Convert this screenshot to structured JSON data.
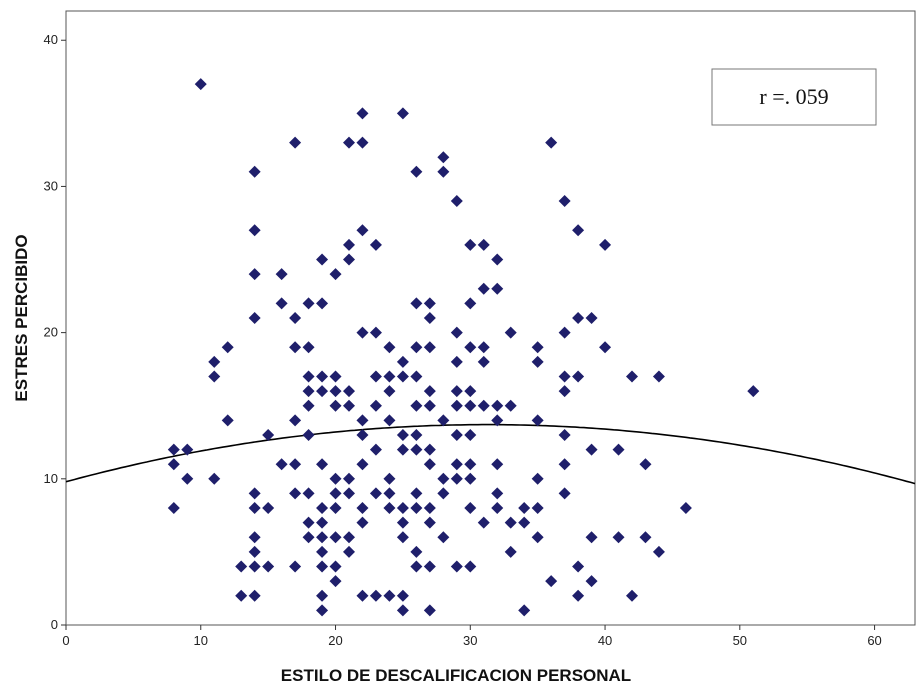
{
  "chart_data": {
    "type": "scatter",
    "xlabel": "ESTILO DE DESCALIFICACION PERSONAL",
    "ylabel": "ESTRES PERCIBIDO",
    "xlim": [
      0,
      63
    ],
    "ylim": [
      0,
      42
    ],
    "x_ticks": [
      0,
      10,
      20,
      30,
      40,
      50,
      60
    ],
    "y_ticks": [
      0,
      10,
      20,
      30,
      40
    ],
    "grid": false,
    "annotation": "r =. 059",
    "annotation_position": "top-right",
    "marker": "diamond",
    "marker_color": "#1f1f6b",
    "fit_line": {
      "type": "quadratic",
      "coefficients": [
        9.8,
        0.25,
        -0.004
      ],
      "color": "#000000"
    },
    "points": [
      [
        10,
        37
      ],
      [
        22,
        35
      ],
      [
        25,
        35
      ],
      [
        17,
        33
      ],
      [
        21,
        33
      ],
      [
        22,
        33
      ],
      [
        36,
        33
      ],
      [
        28,
        32
      ],
      [
        14,
        31
      ],
      [
        26,
        31
      ],
      [
        28,
        31
      ],
      [
        29,
        29
      ],
      [
        37,
        29
      ],
      [
        14,
        27
      ],
      [
        22,
        27
      ],
      [
        38,
        27
      ],
      [
        21,
        26
      ],
      [
        23,
        26
      ],
      [
        30,
        26
      ],
      [
        31,
        26
      ],
      [
        40,
        26
      ],
      [
        19,
        25
      ],
      [
        21,
        25
      ],
      [
        32,
        25
      ],
      [
        14,
        24
      ],
      [
        16,
        24
      ],
      [
        20,
        24
      ],
      [
        31,
        23
      ],
      [
        32,
        23
      ],
      [
        16,
        22
      ],
      [
        18,
        22
      ],
      [
        19,
        22
      ],
      [
        26,
        22
      ],
      [
        27,
        22
      ],
      [
        30,
        22
      ],
      [
        14,
        21
      ],
      [
        17,
        21
      ],
      [
        27,
        21
      ],
      [
        38,
        21
      ],
      [
        39,
        21
      ],
      [
        22,
        20
      ],
      [
        23,
        20
      ],
      [
        29,
        20
      ],
      [
        33,
        20
      ],
      [
        37,
        20
      ],
      [
        12,
        19
      ],
      [
        17,
        19
      ],
      [
        18,
        19
      ],
      [
        24,
        19
      ],
      [
        26,
        19
      ],
      [
        27,
        19
      ],
      [
        30,
        19
      ],
      [
        31,
        19
      ],
      [
        35,
        19
      ],
      [
        40,
        19
      ],
      [
        11,
        18
      ],
      [
        25,
        18
      ],
      [
        29,
        18
      ],
      [
        31,
        18
      ],
      [
        35,
        18
      ],
      [
        11,
        17
      ],
      [
        18,
        17
      ],
      [
        19,
        17
      ],
      [
        20,
        17
      ],
      [
        23,
        17
      ],
      [
        24,
        17
      ],
      [
        25,
        17
      ],
      [
        26,
        17
      ],
      [
        37,
        17
      ],
      [
        38,
        17
      ],
      [
        42,
        17
      ],
      [
        44,
        17
      ],
      [
        18,
        16
      ],
      [
        19,
        16
      ],
      [
        20,
        16
      ],
      [
        21,
        16
      ],
      [
        24,
        16
      ],
      [
        27,
        16
      ],
      [
        29,
        16
      ],
      [
        30,
        16
      ],
      [
        37,
        16
      ],
      [
        51,
        16
      ],
      [
        18,
        15
      ],
      [
        20,
        15
      ],
      [
        21,
        15
      ],
      [
        23,
        15
      ],
      [
        26,
        15
      ],
      [
        27,
        15
      ],
      [
        29,
        15
      ],
      [
        30,
        15
      ],
      [
        31,
        15
      ],
      [
        32,
        15
      ],
      [
        33,
        15
      ],
      [
        12,
        14
      ],
      [
        17,
        14
      ],
      [
        22,
        14
      ],
      [
        24,
        14
      ],
      [
        28,
        14
      ],
      [
        32,
        14
      ],
      [
        35,
        14
      ],
      [
        15,
        13
      ],
      [
        18,
        13
      ],
      [
        22,
        13
      ],
      [
        25,
        13
      ],
      [
        26,
        13
      ],
      [
        29,
        13
      ],
      [
        30,
        13
      ],
      [
        37,
        13
      ],
      [
        8,
        12
      ],
      [
        9,
        12
      ],
      [
        23,
        12
      ],
      [
        25,
        12
      ],
      [
        26,
        12
      ],
      [
        27,
        12
      ],
      [
        39,
        12
      ],
      [
        41,
        12
      ],
      [
        8,
        11
      ],
      [
        16,
        11
      ],
      [
        17,
        11
      ],
      [
        19,
        11
      ],
      [
        22,
        11
      ],
      [
        27,
        11
      ],
      [
        29,
        11
      ],
      [
        30,
        11
      ],
      [
        32,
        11
      ],
      [
        37,
        11
      ],
      [
        43,
        11
      ],
      [
        9,
        10
      ],
      [
        11,
        10
      ],
      [
        20,
        10
      ],
      [
        21,
        10
      ],
      [
        24,
        10
      ],
      [
        28,
        10
      ],
      [
        29,
        10
      ],
      [
        30,
        10
      ],
      [
        35,
        10
      ],
      [
        14,
        9
      ],
      [
        17,
        9
      ],
      [
        18,
        9
      ],
      [
        20,
        9
      ],
      [
        21,
        9
      ],
      [
        23,
        9
      ],
      [
        24,
        9
      ],
      [
        26,
        9
      ],
      [
        28,
        9
      ],
      [
        32,
        9
      ],
      [
        37,
        9
      ],
      [
        8,
        8
      ],
      [
        14,
        8
      ],
      [
        15,
        8
      ],
      [
        19,
        8
      ],
      [
        20,
        8
      ],
      [
        22,
        8
      ],
      [
        24,
        8
      ],
      [
        25,
        8
      ],
      [
        26,
        8
      ],
      [
        27,
        8
      ],
      [
        30,
        8
      ],
      [
        32,
        8
      ],
      [
        34,
        8
      ],
      [
        35,
        8
      ],
      [
        46,
        8
      ],
      [
        18,
        7
      ],
      [
        19,
        7
      ],
      [
        22,
        7
      ],
      [
        25,
        7
      ],
      [
        27,
        7
      ],
      [
        31,
        7
      ],
      [
        33,
        7
      ],
      [
        34,
        7
      ],
      [
        14,
        6
      ],
      [
        18,
        6
      ],
      [
        19,
        6
      ],
      [
        20,
        6
      ],
      [
        21,
        6
      ],
      [
        25,
        6
      ],
      [
        28,
        6
      ],
      [
        35,
        6
      ],
      [
        39,
        6
      ],
      [
        41,
        6
      ],
      [
        43,
        6
      ],
      [
        14,
        5
      ],
      [
        19,
        5
      ],
      [
        21,
        5
      ],
      [
        26,
        5
      ],
      [
        33,
        5
      ],
      [
        44,
        5
      ],
      [
        13,
        4
      ],
      [
        14,
        4
      ],
      [
        15,
        4
      ],
      [
        17,
        4
      ],
      [
        19,
        4
      ],
      [
        20,
        4
      ],
      [
        26,
        4
      ],
      [
        27,
        4
      ],
      [
        29,
        4
      ],
      [
        30,
        4
      ],
      [
        38,
        4
      ],
      [
        20,
        3
      ],
      [
        36,
        3
      ],
      [
        39,
        3
      ],
      [
        13,
        2
      ],
      [
        14,
        2
      ],
      [
        19,
        2
      ],
      [
        22,
        2
      ],
      [
        23,
        2
      ],
      [
        24,
        2
      ],
      [
        25,
        2
      ],
      [
        38,
        2
      ],
      [
        42,
        2
      ],
      [
        19,
        1
      ],
      [
        25,
        1
      ],
      [
        27,
        1
      ],
      [
        34,
        1
      ]
    ]
  }
}
